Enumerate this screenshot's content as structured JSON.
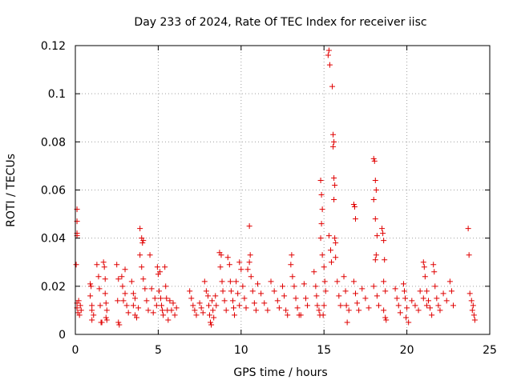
{
  "chart_data": {
    "type": "scatter",
    "title": "Day 233 of 2024, Rate Of TEC Index for receiver iisc",
    "xlabel": "GPS time / hours",
    "ylabel": "ROTI / TECUs",
    "xlim": [
      0,
      25
    ],
    "ylim": [
      0,
      0.12
    ],
    "xticks": [
      0,
      5,
      10,
      15,
      20,
      25
    ],
    "yticks": [
      0,
      0.02,
      0.04,
      0.06,
      0.08,
      0.1,
      0.12
    ],
    "xtick_labels": [
      "0",
      "5",
      "10",
      "15",
      "20",
      "25"
    ],
    "ytick_labels": [
      "0",
      "0.02",
      "0.04",
      "0.06",
      "0.08",
      "0.1",
      "0.12"
    ],
    "grid": true,
    "marker": "+",
    "series": [
      {
        "name": "ROTI",
        "color": "#e00000",
        "points": [
          [
            0.1,
            0.052
          ],
          [
            0.1,
            0.047
          ],
          [
            0.1,
            0.042
          ],
          [
            0.1,
            0.041
          ],
          [
            0.05,
            0.029
          ],
          [
            0.1,
            0.013
          ],
          [
            0.1,
            0.011
          ],
          [
            0.15,
            0.009
          ],
          [
            0.2,
            0.014
          ],
          [
            0.3,
            0.012
          ],
          [
            0.35,
            0.01
          ],
          [
            0.25,
            0.008
          ],
          [
            0.9,
            0.021
          ],
          [
            0.95,
            0.02
          ],
          [
            0.9,
            0.016
          ],
          [
            1.0,
            0.012
          ],
          [
            1.0,
            0.01
          ],
          [
            1.1,
            0.008
          ],
          [
            1.0,
            0.006
          ],
          [
            1.3,
            0.029
          ],
          [
            1.4,
            0.024
          ],
          [
            1.45,
            0.019
          ],
          [
            1.5,
            0.012
          ],
          [
            1.55,
            0.005
          ],
          [
            1.6,
            0.005
          ],
          [
            1.7,
            0.03
          ],
          [
            1.75,
            0.028
          ],
          [
            1.8,
            0.023
          ],
          [
            1.8,
            0.017
          ],
          [
            1.85,
            0.013
          ],
          [
            1.9,
            0.01
          ],
          [
            1.85,
            0.007
          ],
          [
            1.9,
            0.006
          ],
          [
            2.5,
            0.029
          ],
          [
            2.6,
            0.023
          ],
          [
            2.55,
            0.014
          ],
          [
            2.6,
            0.005
          ],
          [
            2.65,
            0.004
          ],
          [
            2.8,
            0.024
          ],
          [
            2.85,
            0.02
          ],
          [
            2.9,
            0.014
          ],
          [
            3.0,
            0.017
          ],
          [
            3.1,
            0.012
          ],
          [
            3.2,
            0.009
          ],
          [
            3.0,
            0.027
          ],
          [
            3.4,
            0.022
          ],
          [
            3.5,
            0.017
          ],
          [
            3.6,
            0.015
          ],
          [
            3.5,
            0.012
          ],
          [
            3.6,
            0.008
          ],
          [
            3.7,
            0.007
          ],
          [
            3.8,
            0.011
          ],
          [
            3.9,
            0.044
          ],
          [
            4.0,
            0.04
          ],
          [
            4.05,
            0.038
          ],
          [
            4.1,
            0.039
          ],
          [
            3.9,
            0.033
          ],
          [
            4.0,
            0.028
          ],
          [
            4.1,
            0.023
          ],
          [
            4.2,
            0.019
          ],
          [
            4.3,
            0.014
          ],
          [
            4.4,
            0.01
          ],
          [
            4.5,
            0.033
          ],
          [
            4.6,
            0.019
          ],
          [
            4.8,
            0.015
          ],
          [
            4.9,
            0.012
          ],
          [
            4.7,
            0.009
          ],
          [
            4.95,
            0.028
          ],
          [
            5.0,
            0.025
          ],
          [
            5.1,
            0.026
          ],
          [
            5.05,
            0.018
          ],
          [
            5.15,
            0.015
          ],
          [
            5.2,
            0.012
          ],
          [
            5.25,
            0.01
          ],
          [
            5.3,
            0.008
          ],
          [
            5.4,
            0.028
          ],
          [
            5.45,
            0.02
          ],
          [
            5.5,
            0.015
          ],
          [
            5.55,
            0.01
          ],
          [
            5.6,
            0.006
          ],
          [
            5.7,
            0.014
          ],
          [
            5.8,
            0.01
          ],
          [
            5.9,
            0.013
          ],
          [
            6.0,
            0.008
          ],
          [
            6.1,
            0.011
          ],
          [
            6.9,
            0.018
          ],
          [
            7.0,
            0.015
          ],
          [
            7.1,
            0.012
          ],
          [
            7.2,
            0.01
          ],
          [
            7.3,
            0.008
          ],
          [
            7.5,
            0.013
          ],
          [
            7.6,
            0.011
          ],
          [
            7.7,
            0.009
          ],
          [
            7.8,
            0.022
          ],
          [
            7.9,
            0.018
          ],
          [
            8.0,
            0.016
          ],
          [
            8.05,
            0.012
          ],
          [
            8.1,
            0.008
          ],
          [
            8.15,
            0.005
          ],
          [
            8.2,
            0.004
          ],
          [
            8.25,
            0.014
          ],
          [
            8.3,
            0.01
          ],
          [
            8.35,
            0.007
          ],
          [
            8.45,
            0.016
          ],
          [
            8.5,
            0.012
          ],
          [
            8.7,
            0.034
          ],
          [
            8.8,
            0.033
          ],
          [
            8.75,
            0.028
          ],
          [
            8.85,
            0.022
          ],
          [
            8.9,
            0.018
          ],
          [
            9.0,
            0.014
          ],
          [
            9.1,
            0.01
          ],
          [
            9.2,
            0.032
          ],
          [
            9.3,
            0.029
          ],
          [
            9.35,
            0.022
          ],
          [
            9.4,
            0.018
          ],
          [
            9.5,
            0.014
          ],
          [
            9.55,
            0.011
          ],
          [
            9.6,
            0.008
          ],
          [
            9.7,
            0.022
          ],
          [
            9.8,
            0.017
          ],
          [
            9.9,
            0.012
          ],
          [
            9.9,
            0.03
          ],
          [
            10.0,
            0.027
          ],
          [
            10.1,
            0.02
          ],
          [
            10.2,
            0.015
          ],
          [
            10.3,
            0.011
          ],
          [
            10.4,
            0.027
          ],
          [
            10.5,
            0.045
          ],
          [
            10.55,
            0.033
          ],
          [
            10.5,
            0.03
          ],
          [
            10.6,
            0.024
          ],
          [
            10.7,
            0.018
          ],
          [
            10.8,
            0.013
          ],
          [
            10.9,
            0.01
          ],
          [
            11.0,
            0.021
          ],
          [
            11.2,
            0.017
          ],
          [
            11.4,
            0.013
          ],
          [
            11.6,
            0.01
          ],
          [
            11.8,
            0.022
          ],
          [
            12.0,
            0.018
          ],
          [
            12.2,
            0.014
          ],
          [
            12.3,
            0.011
          ],
          [
            12.5,
            0.02
          ],
          [
            12.6,
            0.016
          ],
          [
            12.7,
            0.01
          ],
          [
            12.8,
            0.008
          ],
          [
            13.0,
            0.029
          ],
          [
            13.05,
            0.033
          ],
          [
            13.1,
            0.024
          ],
          [
            13.2,
            0.02
          ],
          [
            13.3,
            0.015
          ],
          [
            13.4,
            0.011
          ],
          [
            13.5,
            0.008
          ],
          [
            13.6,
            0.008
          ],
          [
            13.8,
            0.021
          ],
          [
            13.9,
            0.015
          ],
          [
            14.0,
            0.012
          ],
          [
            14.4,
            0.026
          ],
          [
            14.5,
            0.02
          ],
          [
            14.55,
            0.016
          ],
          [
            14.6,
            0.012
          ],
          [
            14.7,
            0.01
          ],
          [
            14.75,
            0.008
          ],
          [
            14.8,
            0.064
          ],
          [
            14.85,
            0.058
          ],
          [
            14.9,
            0.052
          ],
          [
            14.85,
            0.046
          ],
          [
            14.8,
            0.04
          ],
          [
            14.9,
            0.033
          ],
          [
            15.0,
            0.028
          ],
          [
            15.05,
            0.022
          ],
          [
            15.1,
            0.018
          ],
          [
            15.0,
            0.012
          ],
          [
            14.95,
            0.008
          ],
          [
            15.3,
            0.118
          ],
          [
            15.25,
            0.116
          ],
          [
            15.35,
            0.112
          ],
          [
            15.3,
            0.041
          ],
          [
            15.4,
            0.035
          ],
          [
            15.45,
            0.03
          ],
          [
            15.5,
            0.103
          ],
          [
            15.55,
            0.083
          ],
          [
            15.6,
            0.08
          ],
          [
            15.55,
            0.078
          ],
          [
            15.6,
            0.065
          ],
          [
            15.65,
            0.062
          ],
          [
            15.6,
            0.056
          ],
          [
            15.65,
            0.04
          ],
          [
            15.7,
            0.038
          ],
          [
            15.7,
            0.032
          ],
          [
            15.8,
            0.022
          ],
          [
            15.9,
            0.016
          ],
          [
            16.0,
            0.012
          ],
          [
            16.2,
            0.024
          ],
          [
            16.3,
            0.018
          ],
          [
            16.35,
            0.012
          ],
          [
            16.4,
            0.005
          ],
          [
            16.5,
            0.01
          ],
          [
            16.8,
            0.054
          ],
          [
            16.85,
            0.053
          ],
          [
            16.9,
            0.048
          ],
          [
            16.8,
            0.022
          ],
          [
            16.9,
            0.017
          ],
          [
            17.0,
            0.013
          ],
          [
            17.1,
            0.01
          ],
          [
            17.3,
            0.019
          ],
          [
            17.5,
            0.015
          ],
          [
            17.7,
            0.011
          ],
          [
            18.0,
            0.073
          ],
          [
            18.05,
            0.072
          ],
          [
            18.1,
            0.064
          ],
          [
            18.15,
            0.06
          ],
          [
            18.0,
            0.056
          ],
          [
            18.1,
            0.048
          ],
          [
            18.2,
            0.041
          ],
          [
            18.15,
            0.033
          ],
          [
            18.1,
            0.031
          ],
          [
            18.0,
            0.02
          ],
          [
            18.2,
            0.016
          ],
          [
            18.3,
            0.012
          ],
          [
            18.5,
            0.044
          ],
          [
            18.55,
            0.042
          ],
          [
            18.6,
            0.039
          ],
          [
            18.65,
            0.031
          ],
          [
            18.6,
            0.022
          ],
          [
            18.7,
            0.018
          ],
          [
            18.6,
            0.01
          ],
          [
            18.7,
            0.007
          ],
          [
            18.75,
            0.006
          ],
          [
            19.3,
            0.019
          ],
          [
            19.4,
            0.015
          ],
          [
            19.5,
            0.012
          ],
          [
            19.6,
            0.009
          ],
          [
            19.8,
            0.021
          ],
          [
            19.85,
            0.018
          ],
          [
            19.9,
            0.015
          ],
          [
            20.0,
            0.011
          ],
          [
            19.95,
            0.007
          ],
          [
            20.1,
            0.005
          ],
          [
            20.3,
            0.014
          ],
          [
            20.5,
            0.012
          ],
          [
            20.7,
            0.01
          ],
          [
            20.8,
            0.018
          ],
          [
            21.0,
            0.015
          ],
          [
            21.2,
            0.012
          ],
          [
            21.0,
            0.03
          ],
          [
            21.05,
            0.028
          ],
          [
            21.1,
            0.024
          ],
          [
            21.2,
            0.018
          ],
          [
            21.3,
            0.014
          ],
          [
            21.4,
            0.011
          ],
          [
            21.5,
            0.008
          ],
          [
            21.6,
            0.029
          ],
          [
            21.65,
            0.026
          ],
          [
            21.7,
            0.02
          ],
          [
            21.8,
            0.015
          ],
          [
            21.9,
            0.012
          ],
          [
            22.0,
            0.01
          ],
          [
            22.2,
            0.017
          ],
          [
            22.4,
            0.014
          ],
          [
            22.6,
            0.022
          ],
          [
            22.7,
            0.018
          ],
          [
            22.8,
            0.012
          ],
          [
            23.7,
            0.044
          ],
          [
            23.75,
            0.033
          ],
          [
            23.8,
            0.017
          ],
          [
            23.9,
            0.014
          ],
          [
            24.0,
            0.012
          ],
          [
            23.95,
            0.01
          ],
          [
            24.05,
            0.008
          ],
          [
            24.1,
            0.006
          ]
        ]
      }
    ]
  }
}
